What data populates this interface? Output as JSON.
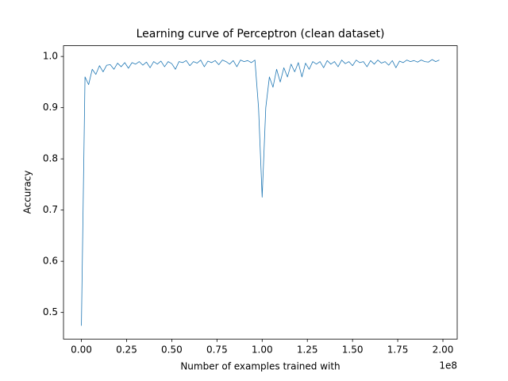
{
  "chart_data": {
    "type": "line",
    "title": "Learning curve of Perceptron (clean dataset)",
    "xlabel": "Number of examples trained with",
    "ylabel": "Accuracy",
    "x_offset_label": "1e8",
    "color": "#1f77b4",
    "x": [
      0,
      2000000,
      4000000,
      6000000,
      8000000,
      10000000,
      12000000,
      14000000,
      16000000,
      18000000,
      20000000,
      22000000,
      24000000,
      26000000,
      28000000,
      30000000,
      32000000,
      34000000,
      36000000,
      38000000,
      40000000,
      42000000,
      44000000,
      46000000,
      48000000,
      50000000,
      52000000,
      54000000,
      56000000,
      58000000,
      60000000,
      62000000,
      64000000,
      66000000,
      68000000,
      70000000,
      72000000,
      74000000,
      76000000,
      78000000,
      80000000,
      82000000,
      84000000,
      86000000,
      88000000,
      90000000,
      92000000,
      94000000,
      96000000,
      98000000,
      100000000,
      102000000,
      104000000,
      106000000,
      108000000,
      110000000,
      112000000,
      114000000,
      116000000,
      118000000,
      120000000,
      122000000,
      124000000,
      126000000,
      128000000,
      130000000,
      132000000,
      134000000,
      136000000,
      138000000,
      140000000,
      142000000,
      144000000,
      146000000,
      148000000,
      150000000,
      152000000,
      154000000,
      156000000,
      158000000,
      160000000,
      162000000,
      164000000,
      166000000,
      168000000,
      170000000,
      172000000,
      174000000,
      176000000,
      178000000,
      180000000,
      182000000,
      184000000,
      186000000,
      188000000,
      190000000,
      192000000,
      194000000,
      196000000,
      198000000
    ],
    "values": [
      0.474,
      0.96,
      0.945,
      0.975,
      0.965,
      0.982,
      0.97,
      0.983,
      0.984,
      0.975,
      0.987,
      0.98,
      0.988,
      0.977,
      0.988,
      0.985,
      0.99,
      0.983,
      0.989,
      0.978,
      0.99,
      0.985,
      0.991,
      0.98,
      0.99,
      0.986,
      0.975,
      0.99,
      0.988,
      0.992,
      0.982,
      0.99,
      0.987,
      0.993,
      0.98,
      0.991,
      0.988,
      0.992,
      0.984,
      0.993,
      0.99,
      0.985,
      0.992,
      0.98,
      0.993,
      0.99,
      0.992,
      0.988,
      0.993,
      0.9,
      0.725,
      0.9,
      0.96,
      0.94,
      0.975,
      0.95,
      0.978,
      0.96,
      0.985,
      0.97,
      0.988,
      0.96,
      0.987,
      0.975,
      0.99,
      0.985,
      0.99,
      0.978,
      0.992,
      0.985,
      0.99,
      0.98,
      0.993,
      0.986,
      0.99,
      0.982,
      0.993,
      0.988,
      0.99,
      0.98,
      0.992,
      0.985,
      0.993,
      0.987,
      0.99,
      0.983,
      0.992,
      0.978,
      0.991,
      0.988,
      0.993,
      0.99,
      0.992,
      0.989,
      0.993,
      0.99,
      0.989,
      0.994,
      0.99,
      0.993
    ],
    "xlim": [
      -9900000,
      207900000
    ],
    "ylim": [
      0.448,
      1.021
    ],
    "xticks": [
      {
        "value": 0,
        "label": "0.00"
      },
      {
        "value": 25000000,
        "label": "0.25"
      },
      {
        "value": 50000000,
        "label": "0.50"
      },
      {
        "value": 75000000,
        "label": "0.75"
      },
      {
        "value": 100000000,
        "label": "1.00"
      },
      {
        "value": 125000000,
        "label": "1.25"
      },
      {
        "value": 150000000,
        "label": "1.50"
      },
      {
        "value": 175000000,
        "label": "1.75"
      },
      {
        "value": 200000000,
        "label": "2.00"
      }
    ],
    "yticks": [
      0.5,
      0.6,
      0.7,
      0.8,
      0.9,
      {
        "value": 1,
        "label": "1.0"
      }
    ],
    "grid": false
  }
}
